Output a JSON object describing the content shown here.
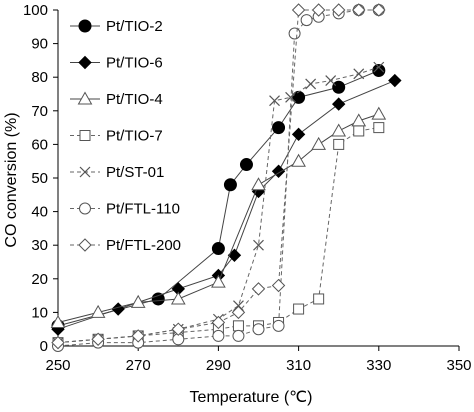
{
  "chart_data": {
    "type": "line",
    "title": "",
    "xlabel": "Temperature (℃)",
    "ylabel": "CO conversion (%)",
    "xlim": [
      250,
      350
    ],
    "ylim": [
      0,
      100
    ],
    "xticks": [
      250,
      270,
      290,
      310,
      330,
      350
    ],
    "yticks": [
      0,
      10,
      20,
      30,
      40,
      50,
      60,
      70,
      80,
      90,
      100
    ],
    "grid": false,
    "legend_position": "top-left",
    "series": [
      {
        "name": "Pt/TIO-2",
        "marker": "circle-filled",
        "line": "solid",
        "x": [
          250,
          275,
          290,
          293,
          297,
          305,
          310,
          320,
          330
        ],
        "y": [
          6,
          14,
          29,
          48,
          54,
          65,
          74,
          77,
          82
        ]
      },
      {
        "name": "Pt/TIO-6",
        "marker": "diamond-filled",
        "line": "solid",
        "x": [
          250,
          265,
          280,
          290,
          294,
          300,
          305,
          310,
          320,
          334
        ],
        "y": [
          5,
          11,
          17,
          21,
          27,
          46,
          52,
          63,
          72,
          79
        ]
      },
      {
        "name": "Pt/TIO-4",
        "marker": "triangle-open",
        "line": "solid",
        "x": [
          250,
          260,
          270,
          280,
          290,
          300,
          310,
          315,
          320,
          325,
          330
        ],
        "y": [
          7,
          10,
          13,
          14,
          19,
          48,
          55,
          60,
          64,
          67,
          69
        ]
      },
      {
        "name": "Pt/TIO-7",
        "marker": "square-open",
        "line": "dashed",
        "x": [
          250,
          260,
          270,
          280,
          290,
          295,
          300,
          305,
          310,
          315,
          320,
          325,
          330
        ],
        "y": [
          1,
          2,
          3,
          4,
          5,
          6,
          6,
          7,
          11,
          14,
          60,
          64,
          65
        ]
      },
      {
        "name": "Pt/ST-01",
        "marker": "x",
        "line": "dashed",
        "x": [
          250,
          260,
          270,
          280,
          290,
          295,
          300,
          304,
          308,
          313,
          318,
          325,
          330
        ],
        "y": [
          1,
          2,
          3,
          5,
          8,
          12,
          30,
          73,
          74,
          78,
          79,
          81,
          83
        ]
      },
      {
        "name": "Pt/FTL-110",
        "marker": "circle-open",
        "line": "dashed",
        "x": [
          250,
          260,
          270,
          280,
          290,
          295,
          300,
          305,
          309,
          312,
          315,
          320,
          325,
          330
        ],
        "y": [
          0,
          1,
          1,
          2,
          3,
          3,
          5,
          6,
          93,
          97,
          98,
          99,
          100,
          100
        ]
      },
      {
        "name": "Pt/FTL-200",
        "marker": "diamond-open",
        "line": "dashed",
        "x": [
          250,
          260,
          270,
          280,
          290,
          295,
          300,
          305,
          310,
          315,
          320,
          325,
          330
        ],
        "y": [
          1,
          2,
          3,
          5,
          7,
          10,
          17,
          18,
          100,
          100,
          100,
          100,
          100
        ]
      }
    ]
  }
}
